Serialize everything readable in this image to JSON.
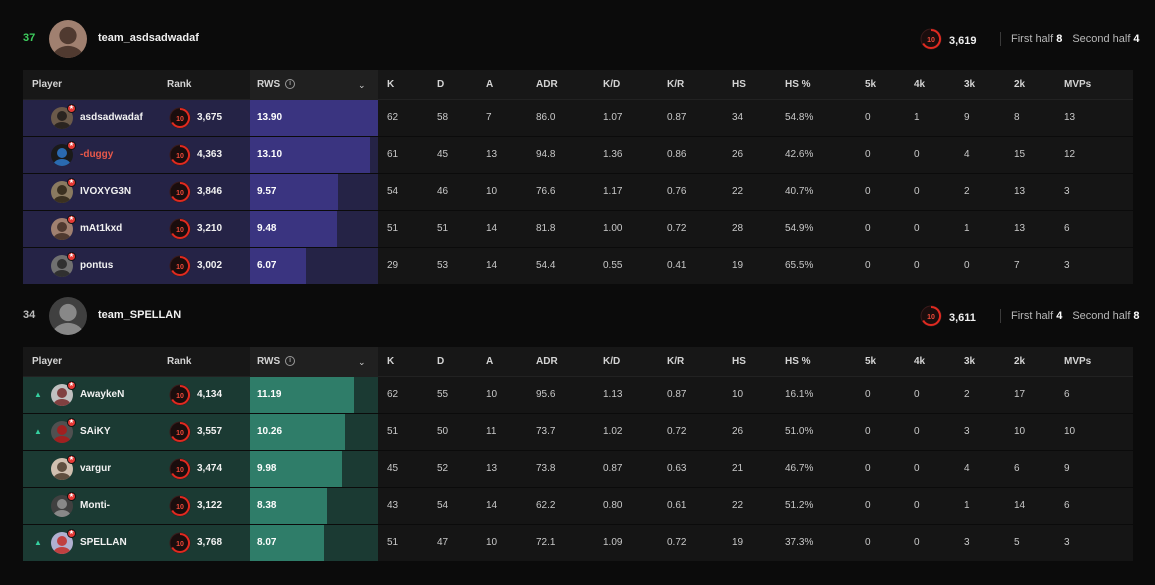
{
  "columns": {
    "player": "Player",
    "rank": "Rank",
    "rws": "RWS",
    "k": "K",
    "d": "D",
    "a": "A",
    "adr": "ADR",
    "kd": "K/D",
    "kr": "K/R",
    "hs": "HS",
    "hsp": "HS %",
    "k5": "5k",
    "k4": "4k",
    "k3": "3k",
    "k2": "2k",
    "mvps": "MVPs"
  },
  "level_label": "10",
  "teams": [
    {
      "score": "37",
      "score_color": "#3ecf5e",
      "name": "team_asdsadwadaf",
      "avg_elo": "3,619",
      "first_half_label": "First half",
      "first_half": "8",
      "second_half_label": "Second half",
      "second_half": "4",
      "row_color": "#252346",
      "bar_color": "#3a3480",
      "players": [
        {
          "name": "asdsadwadaf",
          "name_color": "#f2f2f2",
          "arrow": "",
          "elo": "3,675",
          "rws": "13.90",
          "rws_frac": 1.0,
          "k": "62",
          "d": "58",
          "a": "7",
          "adr": "86.0",
          "kd": "1.07",
          "kr": "0.87",
          "hs": "34",
          "hsp": "54.8%",
          "k5": "0",
          "k4": "1",
          "k3": "9",
          "k2": "8",
          "mvps": "13"
        },
        {
          "name": "-duggy",
          "name_color": "#e8584a",
          "arrow": "",
          "elo": "4,363",
          "rws": "13.10",
          "rws_frac": 0.94,
          "k": "61",
          "d": "45",
          "a": "13",
          "adr": "94.8",
          "kd": "1.36",
          "kr": "0.86",
          "hs": "26",
          "hsp": "42.6%",
          "k5": "0",
          "k4": "0",
          "k3": "4",
          "k2": "15",
          "mvps": "12"
        },
        {
          "name": "IVOXYG3N",
          "name_color": "#f2f2f2",
          "arrow": "",
          "elo": "3,846",
          "rws": "9.57",
          "rws_frac": 0.69,
          "k": "54",
          "d": "46",
          "a": "10",
          "adr": "76.6",
          "kd": "1.17",
          "kr": "0.76",
          "hs": "22",
          "hsp": "40.7%",
          "k5": "0",
          "k4": "0",
          "k3": "2",
          "k2": "13",
          "mvps": "3"
        },
        {
          "name": "mAt1kxd",
          "name_color": "#f2f2f2",
          "arrow": "",
          "elo": "3,210",
          "rws": "9.48",
          "rws_frac": 0.68,
          "k": "51",
          "d": "51",
          "a": "14",
          "adr": "81.8",
          "kd": "1.00",
          "kr": "0.72",
          "hs": "28",
          "hsp": "54.9%",
          "k5": "0",
          "k4": "0",
          "k3": "1",
          "k2": "13",
          "mvps": "6"
        },
        {
          "name": "pontus",
          "name_color": "#f2f2f2",
          "arrow": "",
          "elo": "3,002",
          "rws": "6.07",
          "rws_frac": 0.44,
          "k": "29",
          "d": "53",
          "a": "14",
          "adr": "54.4",
          "kd": "0.55",
          "kr": "0.41",
          "hs": "19",
          "hsp": "65.5%",
          "k5": "0",
          "k4": "0",
          "k3": "0",
          "k2": "7",
          "mvps": "3"
        }
      ]
    },
    {
      "score": "34",
      "score_color": "#bdbdbd",
      "name": "team_SPELLAN",
      "avg_elo": "3,611",
      "first_half_label": "First half",
      "first_half": "4",
      "second_half_label": "Second half",
      "second_half": "8",
      "row_color": "#1b3a33",
      "bar_color": "#2f7d69",
      "players": [
        {
          "name": "AwaykeN",
          "name_color": "#f2f2f2",
          "arrow": "▲",
          "elo": "4,134",
          "rws": "11.19",
          "rws_frac": 0.81,
          "k": "62",
          "d": "55",
          "a": "10",
          "adr": "95.6",
          "kd": "1.13",
          "kr": "0.87",
          "hs": "10",
          "hsp": "16.1%",
          "k5": "0",
          "k4": "0",
          "k3": "2",
          "k2": "17",
          "mvps": "6"
        },
        {
          "name": "SAiKY",
          "name_color": "#f2f2f2",
          "arrow": "▲",
          "elo": "3,557",
          "rws": "10.26",
          "rws_frac": 0.74,
          "k": "51",
          "d": "50",
          "a": "11",
          "adr": "73.7",
          "kd": "1.02",
          "kr": "0.72",
          "hs": "26",
          "hsp": "51.0%",
          "k5": "0",
          "k4": "0",
          "k3": "3",
          "k2": "10",
          "mvps": "10"
        },
        {
          "name": "vargur",
          "name_color": "#f2f2f2",
          "arrow": "",
          "elo": "3,474",
          "rws": "9.98",
          "rws_frac": 0.72,
          "k": "45",
          "d": "52",
          "a": "13",
          "adr": "73.8",
          "kd": "0.87",
          "kr": "0.63",
          "hs": "21",
          "hsp": "46.7%",
          "k5": "0",
          "k4": "0",
          "k3": "4",
          "k2": "6",
          "mvps": "9"
        },
        {
          "name": "Monti-",
          "name_color": "#f2f2f2",
          "arrow": "",
          "elo": "3,122",
          "rws": "8.38",
          "rws_frac": 0.6,
          "k": "43",
          "d": "54",
          "a": "14",
          "adr": "62.2",
          "kd": "0.80",
          "kr": "0.61",
          "hs": "22",
          "hsp": "51.2%",
          "k5": "0",
          "k4": "0",
          "k3": "1",
          "k2": "14",
          "mvps": "6"
        },
        {
          "name": "SPELLAN",
          "name_color": "#f2f2f2",
          "arrow": "▲",
          "elo": "3,768",
          "rws": "8.07",
          "rws_frac": 0.58,
          "k": "51",
          "d": "47",
          "a": "10",
          "adr": "72.1",
          "kd": "1.09",
          "kr": "0.72",
          "hs": "19",
          "hsp": "37.3%",
          "k5": "0",
          "k4": "0",
          "k3": "3",
          "k2": "5",
          "mvps": "3"
        }
      ]
    }
  ]
}
